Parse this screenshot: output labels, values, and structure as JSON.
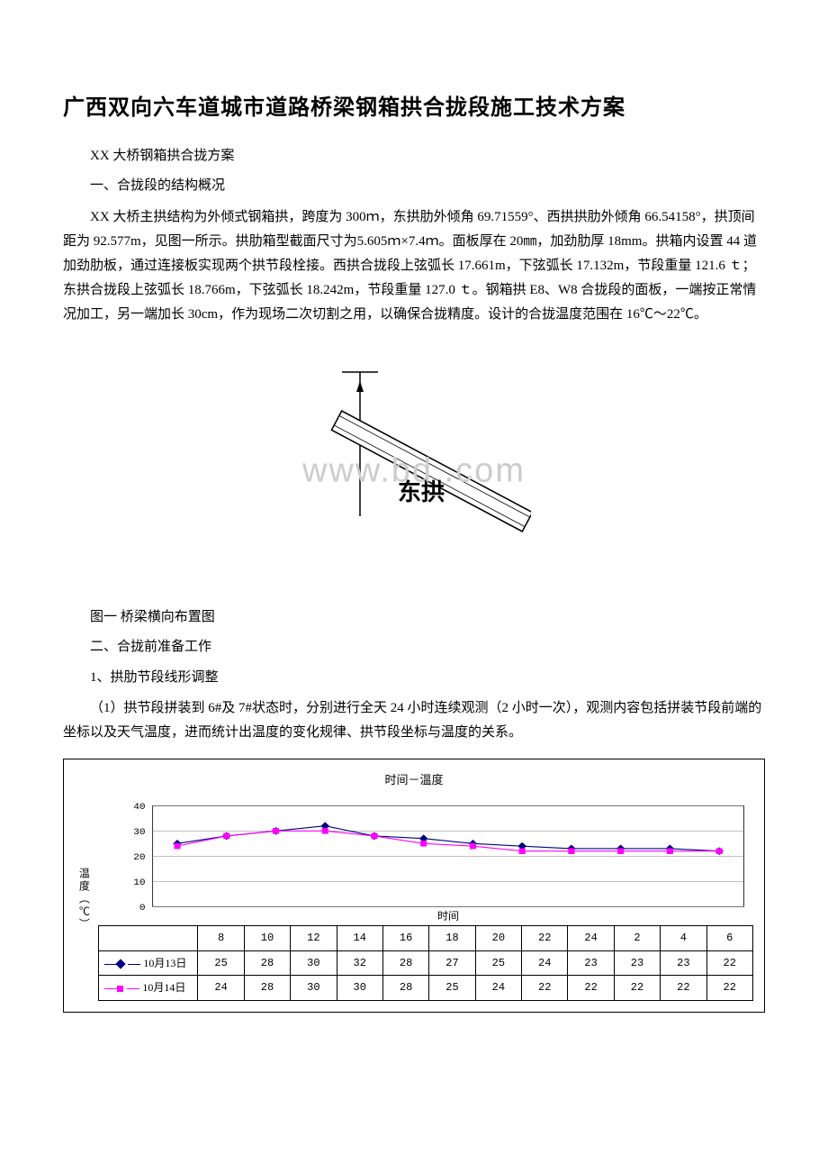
{
  "title": "广西双向六车道城市道路桥梁钢箱拱合拢段施工技术方案",
  "intro": {
    "line1": "XX 大桥钢箱拱合拢方案",
    "line2": "一、合拢段的结构概况"
  },
  "body1": "XX 大桥主拱结构为外倾式钢箱拱，跨度为 300ｍ，东拱肋外倾角 69.71559°、西拱拱肋外倾角 66.54158°，拱顶间距为 92.577m，见图一所示。拱肋箱型截面尺寸为5.605ｍ×7.4ｍ。面板厚在 20㎜，加劲肋厚 18mm。拱箱内设置 44 道加劲肋板，通过连接板实现两个拱节段栓接。西拱合拢段上弦弧长 17.661m，下弦弧长 17.132m，节段重量 121.6 ｔ；东拱合拢段上弦弧长 18.766m，下弦弧长 18.242m，节段重量 127.0 ｔ。钢箱拱 E8、W8 合拢段的面板，一端按正常情况加工，另一端加长 30cm，作为现场二次切割之用，以确保合拢精度。设计的合拢温度范围在 16℃～22℃。",
  "figure1": {
    "label_inside": "东拱",
    "caption": "图一 桥梁横向布置图"
  },
  "watermark_text": "www.bd    .com",
  "section2": {
    "heading": "二、合拢前准备工作",
    "sub1": "1、拱肋节段线形调整",
    "item1": "（1）拱节段拼装到 6#及 7#状态时，分别进行全天 24 小时连续观测（2 小时一次），观测内容包括拼装节段前端的坐标以及天气温度，进而统计出温度的变化规律、拱节段坐标与温度的关系。"
  },
  "chart": {
    "title": "时间－温度",
    "y_label": "温度（℃）",
    "x_caption": "时间",
    "y_ticks": [
      0,
      10,
      20,
      30,
      40
    ],
    "ylim": [
      0,
      40
    ],
    "x_categories": [
      "8",
      "10",
      "12",
      "14",
      "16",
      "18",
      "20",
      "22",
      "24",
      "2",
      "4",
      "6"
    ],
    "background_color": "#ffffff",
    "grid_color": "#808080",
    "series": [
      {
        "name": "10月13日",
        "color": "#000080",
        "marker": "diamond",
        "values": [
          25,
          28,
          30,
          32,
          28,
          27,
          25,
          24,
          23,
          23,
          23,
          22
        ]
      },
      {
        "name": "10月14日",
        "color": "#ff00ff",
        "marker": "square",
        "values": [
          24,
          28,
          30,
          30,
          28,
          25,
          24,
          22,
          22,
          22,
          22,
          22
        ]
      }
    ],
    "tick_fontsize": 11,
    "line_width": 1.2
  }
}
